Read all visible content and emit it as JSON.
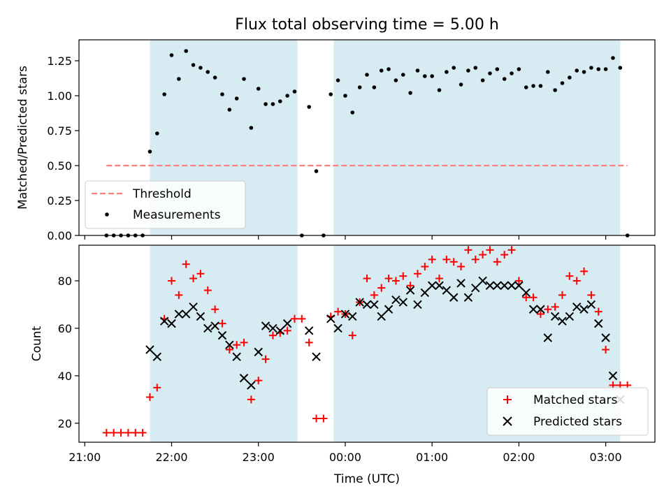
{
  "chart_data": [
    {
      "type": "scatter",
      "title": "Flux total observing time = 5.00 h",
      "ylabel": "Matched/Predicted stars",
      "ylim": [
        0,
        1.4
      ],
      "yticks": [
        "0.00",
        "0.25",
        "0.50",
        "0.75",
        "1.00",
        "1.25"
      ],
      "shaded_spans": [
        [
          "21:45",
          "23:27"
        ],
        [
          "23:52",
          "03:10"
        ]
      ],
      "threshold": {
        "value": 0.5,
        "x_start": "21:15",
        "x_end": "03:15"
      },
      "legend": {
        "placement": "lower-left",
        "entries": [
          "Threshold",
          "Measurements"
        ]
      },
      "series": [
        {
          "name": "Measurements",
          "x": [
            "21:15",
            "21:20",
            "21:25",
            "21:30",
            "21:35",
            "21:40",
            "21:45",
            "21:50",
            "21:55",
            "22:00",
            "22:05",
            "22:10",
            "22:15",
            "22:20",
            "22:25",
            "22:30",
            "22:35",
            "22:40",
            "22:45",
            "22:50",
            "22:55",
            "23:00",
            "23:05",
            "23:10",
            "23:15",
            "23:20",
            "23:25",
            "23:30",
            "23:35",
            "23:40",
            "23:45",
            "23:50",
            "23:55",
            "24:00",
            "24:05",
            "24:10",
            "24:15",
            "24:20",
            "24:25",
            "24:30",
            "24:35",
            "24:40",
            "24:45",
            "24:50",
            "24:55",
            "25:00",
            "25:05",
            "25:10",
            "25:15",
            "25:20",
            "25:25",
            "25:30",
            "25:35",
            "25:40",
            "25:45",
            "25:50",
            "25:55",
            "26:00",
            "26:05",
            "26:10",
            "26:15",
            "26:20",
            "26:25",
            "26:30",
            "26:35",
            "26:40",
            "26:45",
            "26:50",
            "26:55",
            "27:00",
            "27:05",
            "27:10",
            "27:15"
          ],
          "y": [
            0,
            0,
            0,
            0,
            0,
            0,
            0.6,
            0.73,
            1.01,
            1.29,
            1.12,
            1.32,
            1.22,
            1.2,
            1.17,
            1.13,
            1.01,
            0.9,
            0.98,
            1.12,
            0.77,
            1.05,
            0.94,
            0.94,
            0.96,
            1.0,
            1.03,
            0,
            0.92,
            0.46,
            0,
            1.01,
            1.11,
            1.0,
            0.88,
            1.06,
            1.15,
            1.06,
            1.18,
            1.19,
            1.11,
            1.15,
            1.02,
            1.18,
            1.14,
            1.14,
            1.04,
            1.17,
            1.2,
            1.08,
            1.18,
            1.2,
            1.11,
            1.16,
            1.19,
            1.12,
            1.16,
            1.19,
            1.06,
            1.07,
            1.07,
            1.17,
            1.04,
            1.09,
            1.13,
            1.18,
            1.17,
            1.2,
            1.19,
            1.19,
            1.27,
            1.2,
            0
          ]
        }
      ]
    },
    {
      "type": "scatter",
      "xlabel": "Time (UTC)",
      "ylabel": "Count",
      "ylim": [
        12,
        95
      ],
      "xlim": [
        "20:56",
        "03:34"
      ],
      "yticks": [
        "20",
        "40",
        "60",
        "80"
      ],
      "xticks": [
        "21:00",
        "22:00",
        "23:00",
        "00:00",
        "01:00",
        "02:00",
        "03:00"
      ],
      "shaded_spans": [
        [
          "21:45",
          "23:27"
        ],
        [
          "23:52",
          "03:10"
        ]
      ],
      "legend": {
        "placement": "lower-right",
        "entries": [
          "Matched stars",
          "Predicted stars"
        ]
      },
      "series": [
        {
          "name": "Matched stars",
          "x": [
            "21:15",
            "21:20",
            "21:25",
            "21:30",
            "21:35",
            "21:40",
            "21:45",
            "21:50",
            "21:55",
            "22:00",
            "22:05",
            "22:10",
            "22:15",
            "22:20",
            "22:25",
            "22:30",
            "22:35",
            "22:40",
            "22:45",
            "22:50",
            "22:55",
            "23:00",
            "23:05",
            "23:10",
            "23:15",
            "23:20",
            "23:25",
            "23:30",
            "23:35",
            "23:40",
            "23:45",
            "23:50",
            "23:55",
            "24:00",
            "24:05",
            "24:10",
            "24:15",
            "24:20",
            "24:25",
            "24:30",
            "24:35",
            "24:40",
            "24:45",
            "24:50",
            "24:55",
            "25:00",
            "25:05",
            "25:10",
            "25:15",
            "25:20",
            "25:25",
            "25:30",
            "25:35",
            "25:40",
            "25:45",
            "25:50",
            "25:55",
            "26:00",
            "26:05",
            "26:10",
            "26:15",
            "26:20",
            "26:25",
            "26:30",
            "26:35",
            "26:40",
            "26:45",
            "26:50",
            "26:55",
            "27:00",
            "27:05",
            "27:10",
            "27:15"
          ],
          "y": [
            16,
            16,
            16,
            16,
            16,
            16,
            31,
            35,
            64,
            80,
            74,
            87,
            81,
            83,
            76,
            68,
            62,
            51,
            53,
            54,
            30,
            38,
            47,
            57,
            58,
            59,
            64,
            64,
            54,
            22,
            22,
            65,
            67,
            66,
            57,
            71,
            81,
            74,
            77,
            81,
            80,
            82,
            78,
            83,
            86,
            89,
            81,
            89,
            88,
            86,
            93,
            89,
            91,
            93,
            88,
            91,
            93,
            80,
            73,
            73,
            66,
            68,
            69,
            74,
            82,
            80,
            84,
            74,
            67,
            51,
            36,
            36,
            36
          ]
        },
        {
          "name": "Predicted stars",
          "x": [
            "21:45",
            "21:50",
            "21:55",
            "22:00",
            "22:05",
            "22:10",
            "22:15",
            "22:20",
            "22:25",
            "22:30",
            "22:35",
            "22:40",
            "22:45",
            "22:50",
            "22:55",
            "23:00",
            "23:05",
            "23:10",
            "23:15",
            "23:20",
            "23:25",
            "23:35",
            "23:40",
            "23:50",
            "23:55",
            "24:00",
            "24:05",
            "24:10",
            "24:15",
            "24:20",
            "24:25",
            "24:30",
            "24:35",
            "24:40",
            "24:45",
            "24:50",
            "24:55",
            "25:00",
            "25:05",
            "25:10",
            "25:15",
            "25:20",
            "25:25",
            "25:30",
            "25:35",
            "25:40",
            "25:45",
            "25:50",
            "25:55",
            "26:00",
            "26:05",
            "26:10",
            "26:15",
            "26:20",
            "26:25",
            "26:30",
            "26:35",
            "26:40",
            "26:45",
            "26:50",
            "26:55",
            "27:00",
            "27:05",
            "27:10"
          ],
          "y": [
            51,
            48,
            63,
            62,
            66,
            66,
            69,
            65,
            60,
            61,
            57,
            53,
            48,
            39,
            36,
            50,
            61,
            60,
            59,
            62,
            null,
            59,
            48,
            64,
            60,
            66,
            65,
            71,
            70,
            70,
            65,
            68,
            72,
            71,
            76,
            70,
            75,
            78,
            78,
            76,
            73,
            79,
            73,
            77,
            80,
            78,
            78,
            78,
            78,
            78,
            75,
            68,
            68,
            56,
            65,
            63,
            65,
            69,
            68,
            70,
            62,
            56,
            40,
            30
          ]
        }
      ]
    }
  ]
}
